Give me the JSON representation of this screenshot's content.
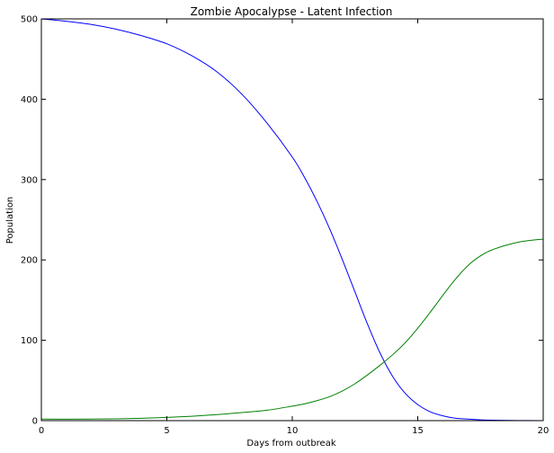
{
  "chart_data": {
    "type": "line",
    "title": "Zombie Apocalypse - Latent Infection",
    "xlabel": "Days from outbreak",
    "ylabel": "Population",
    "xlim": [
      0,
      20
    ],
    "ylim": [
      0,
      500
    ],
    "xticks": [
      0,
      5,
      10,
      15,
      20
    ],
    "yticks": [
      0,
      100,
      200,
      300,
      400,
      500
    ],
    "grid": false,
    "legend": "none",
    "series": [
      {
        "color": "#0000ff",
        "x": [
          0,
          1,
          2,
          3,
          4,
          5,
          6,
          7,
          8,
          9,
          10,
          10.5,
          11,
          11.5,
          12,
          12.5,
          13,
          13.5,
          14,
          14.5,
          15,
          15.5,
          16,
          16.5,
          17,
          17.5,
          18,
          19,
          20
        ],
        "y": [
          500,
          497,
          493,
          487,
          479,
          469,
          454,
          434,
          406,
          370,
          328,
          302,
          272,
          238,
          200,
          160,
          120,
          84,
          55,
          34,
          20,
          11,
          6,
          3,
          2,
          1,
          0.5,
          0.2,
          0
        ]
      },
      {
        "color": "#008000",
        "x": [
          0,
          1,
          2,
          3,
          4,
          5,
          6,
          7,
          8,
          9,
          10,
          10.5,
          11,
          11.5,
          12,
          12.5,
          13,
          13.5,
          14,
          14.5,
          15,
          15.5,
          16,
          16.5,
          17,
          17.5,
          18,
          19,
          20
        ],
        "y": [
          2,
          1.8,
          2,
          2.3,
          3,
          4,
          5.5,
          7.5,
          10,
          13,
          18,
          21,
          25,
          30,
          37,
          46,
          57,
          69,
          82,
          97,
          115,
          135,
          156,
          176,
          193,
          205,
          213,
          222,
          226
        ]
      }
    ]
  }
}
